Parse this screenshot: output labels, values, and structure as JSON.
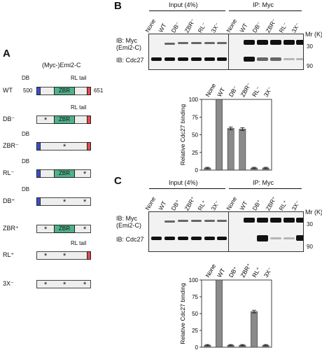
{
  "panels": {
    "a": {
      "letter": "A",
      "title": "(Myc-)Emi2-C",
      "wt_start": "500",
      "wt_end": "651",
      "db_label": "DB",
      "zbr_label": "ZBR",
      "rl_label": "RL tail",
      "star": "*",
      "constructs": [
        "WT",
        "DB⁻",
        "ZBR⁻",
        "RL⁻",
        "DB⁺",
        "ZBR⁺",
        "RL⁺",
        "3X⁻"
      ]
    },
    "b": {
      "letter": "B",
      "input_label": "Input (4%)",
      "ip_label": "IP: Myc",
      "lanes": [
        "None",
        "WT",
        "DB⁻",
        "ZBR⁻",
        "RL⁻",
        "3X⁻"
      ],
      "ib_myc": "IB: Myc",
      "ib_myc_sub": "(Emi2-C)",
      "ib_cdc27": "IB: Cdc27",
      "mr": "Mr (K)",
      "mw_30": "30",
      "mw_90": "90"
    },
    "c": {
      "letter": "C",
      "input_label": "Input (4%)",
      "ip_label": "IP: Myc",
      "lanes": [
        "None",
        "WT",
        "DB⁺",
        "ZBR⁺",
        "RL⁺",
        "3X⁻"
      ],
      "ib_myc": "IB: Myc",
      "ib_myc_sub": "(Emi2-C)",
      "ib_cdc27": "IB: Cdc27",
      "mr": "Mr (K)",
      "mw_30": "30",
      "mw_90": "90"
    }
  },
  "chart_data": [
    {
      "type": "bar",
      "categories": [
        "None",
        "WT",
        "DB⁻",
        "ZBR⁻",
        "RL⁻",
        "3X⁻"
      ],
      "values": [
        3,
        100,
        59,
        58,
        3,
        3
      ],
      "errors": [
        1,
        0,
        2,
        2,
        1,
        1
      ],
      "ylabel": "Relative Cdc27 binding",
      "ylim": [
        0,
        100
      ],
      "yticks": [
        "0",
        "25",
        "50",
        "75",
        "100"
      ]
    },
    {
      "type": "bar",
      "categories": [
        "None",
        "WT",
        "DB⁺",
        "ZBR⁺",
        "RL⁺",
        "3X⁻"
      ],
      "values": [
        3,
        100,
        3,
        3,
        53,
        3
      ],
      "errors": [
        1,
        0,
        1,
        1,
        2,
        1
      ],
      "ylabel": "Relative Cdc27 binding",
      "ylim": [
        0,
        100
      ],
      "yticks": [
        "0",
        "25",
        "50",
        "75",
        "100"
      ]
    }
  ]
}
